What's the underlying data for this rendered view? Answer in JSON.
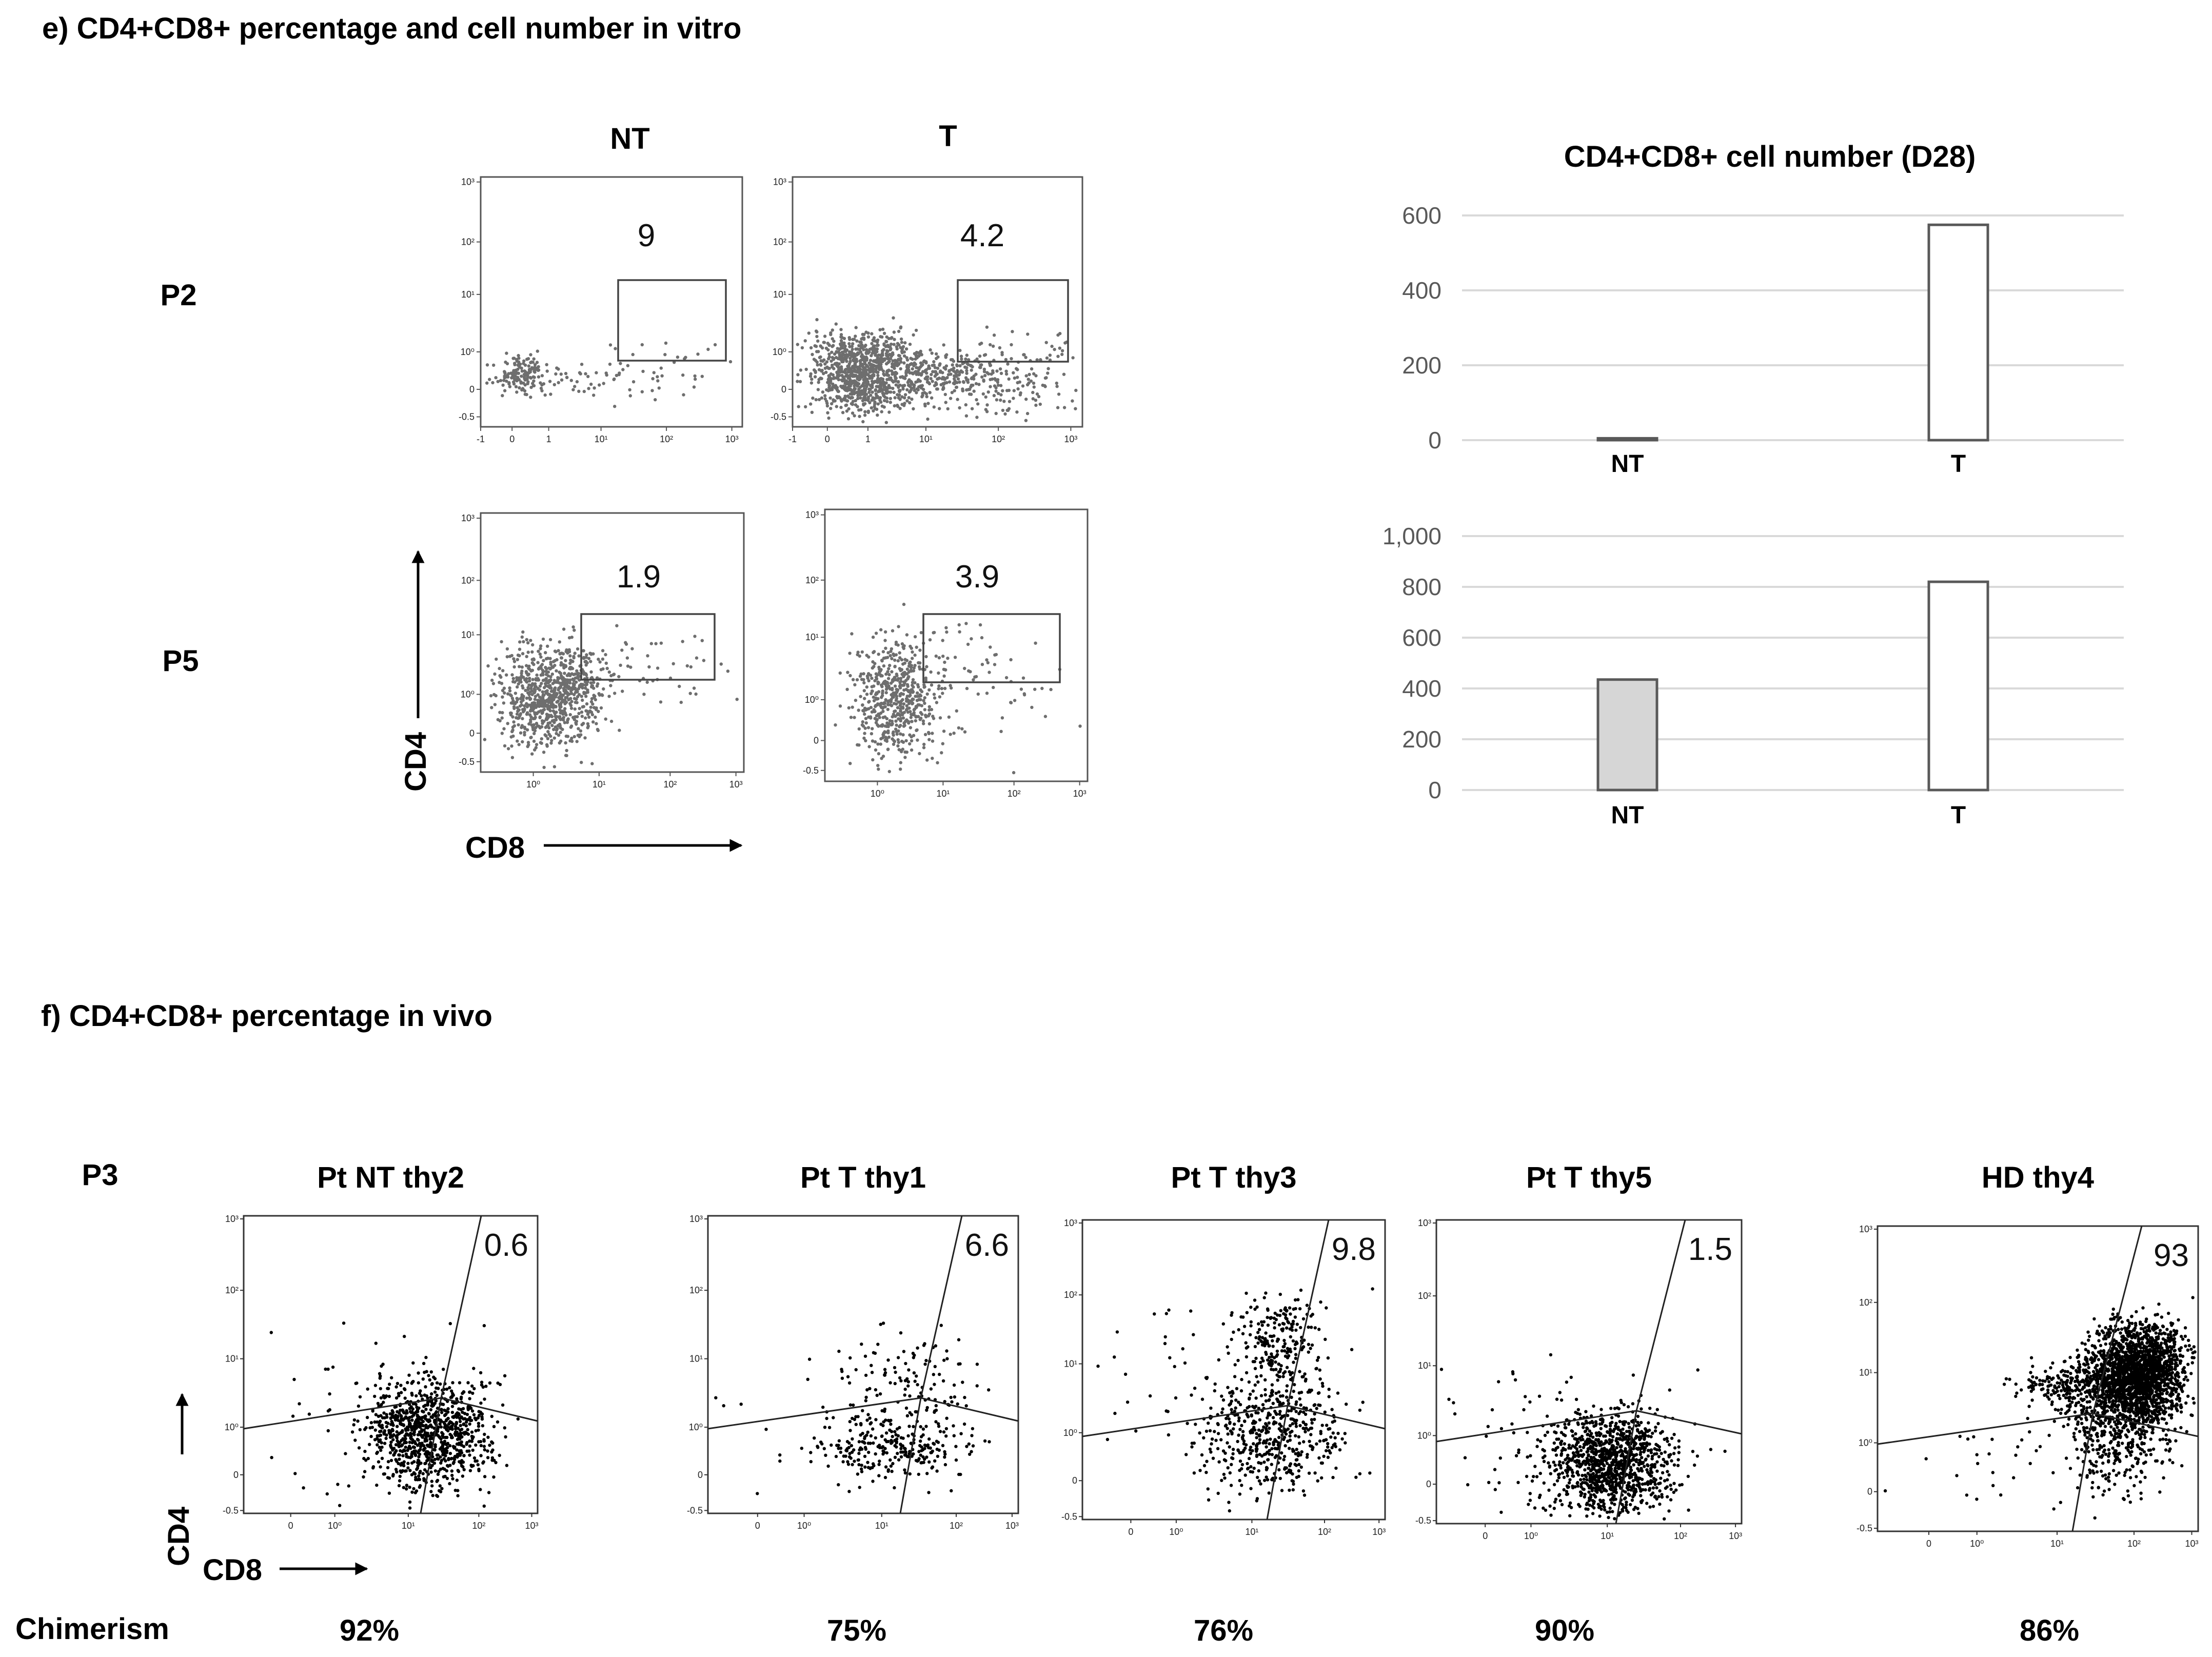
{
  "colors": {
    "background": "#ffffff",
    "frame": "#333333",
    "grid": "#d9d9d9",
    "dot_invitro": "#6e6e6e",
    "dot_invivo": "#000000",
    "bar_nt_p5": "#d6d6d6",
    "bar_t": "#ffffff",
    "bar_outline": "#595959"
  },
  "section_e": {
    "title": "e) CD4+CD8+ percentage and cell number in vitro",
    "col_labels": [
      "NT",
      "T"
    ],
    "row_labels": [
      "P2",
      "P5"
    ],
    "y_axis_label": "CD4",
    "x_axis_label": "CD8",
    "flow_plots": [
      {
        "id": "P2-NT",
        "gate_value": "9",
        "y_ticks": [
          "10³",
          "10²",
          "10¹",
          "10⁰",
          "0",
          "-0.5"
        ],
        "x_ticks": [
          "-1",
          "0",
          "1",
          "10¹",
          "10²",
          "10³"
        ]
      },
      {
        "id": "P2-T",
        "gate_value": "4.2",
        "y_ticks": [
          "10³",
          "10²",
          "10¹",
          "10⁰",
          "0",
          "-0.5"
        ],
        "x_ticks": [
          "-1",
          "0",
          "1",
          "10¹",
          "10²",
          "10³"
        ]
      },
      {
        "id": "P5-NT",
        "gate_value": "1.9",
        "y_ticks": [
          "10³",
          "10²",
          "10¹",
          "10⁰",
          "0",
          "-0.5"
        ],
        "x_ticks": [
          "10⁰",
          "10¹",
          "10²",
          "10³"
        ]
      },
      {
        "id": "P5-T",
        "gate_value": "3.9",
        "y_ticks": [
          "10³",
          "10²",
          "10¹",
          "10⁰",
          "0",
          "-0.5"
        ],
        "x_ticks": [
          "10⁰",
          "10¹",
          "10²",
          "10³"
        ]
      }
    ]
  },
  "section_f": {
    "title": "f) CD4+CD8+ percentage in vivo",
    "row_label": "P3",
    "y_axis_label": "CD4",
    "x_axis_label": "CD8",
    "chimerism_label": "Chimerism",
    "y_ticks": [
      "10³",
      "10²",
      "10¹",
      "10⁰",
      "0",
      "-0.5"
    ],
    "x_ticks": [
      "0",
      "10⁰",
      "10¹",
      "10²",
      "10³"
    ],
    "plots": [
      {
        "title": "Pt NT thy2",
        "gate_value": "0.6",
        "chimerism": "92%"
      },
      {
        "title": "Pt T thy1",
        "gate_value": "6.6",
        "chimerism": "75%"
      },
      {
        "title": "Pt T thy3",
        "gate_value": "9.8",
        "chimerism": "76%"
      },
      {
        "title": "Pt T thy5",
        "gate_value": "1.5",
        "chimerism": "90%"
      },
      {
        "title": "HD thy4",
        "gate_value": "93",
        "chimerism": "86%"
      }
    ]
  },
  "chart_data": [
    {
      "type": "bar",
      "title": "CD4+CD8+ cell number (D28)",
      "row": "P2",
      "categories": [
        "NT",
        "T"
      ],
      "values": [
        5,
        575
      ],
      "ylim": [
        0,
        600
      ],
      "y_ticks": [
        "600",
        "400",
        "200",
        "0"
      ],
      "xlabel": "",
      "ylabel": ""
    },
    {
      "type": "bar",
      "title": "",
      "row": "P5",
      "categories": [
        "NT",
        "T"
      ],
      "values": [
        435,
        820
      ],
      "ylim": [
        0,
        1000
      ],
      "y_ticks": [
        "1,000",
        "800",
        "600",
        "400",
        "200",
        "0"
      ],
      "xlabel": "",
      "ylabel": ""
    }
  ]
}
